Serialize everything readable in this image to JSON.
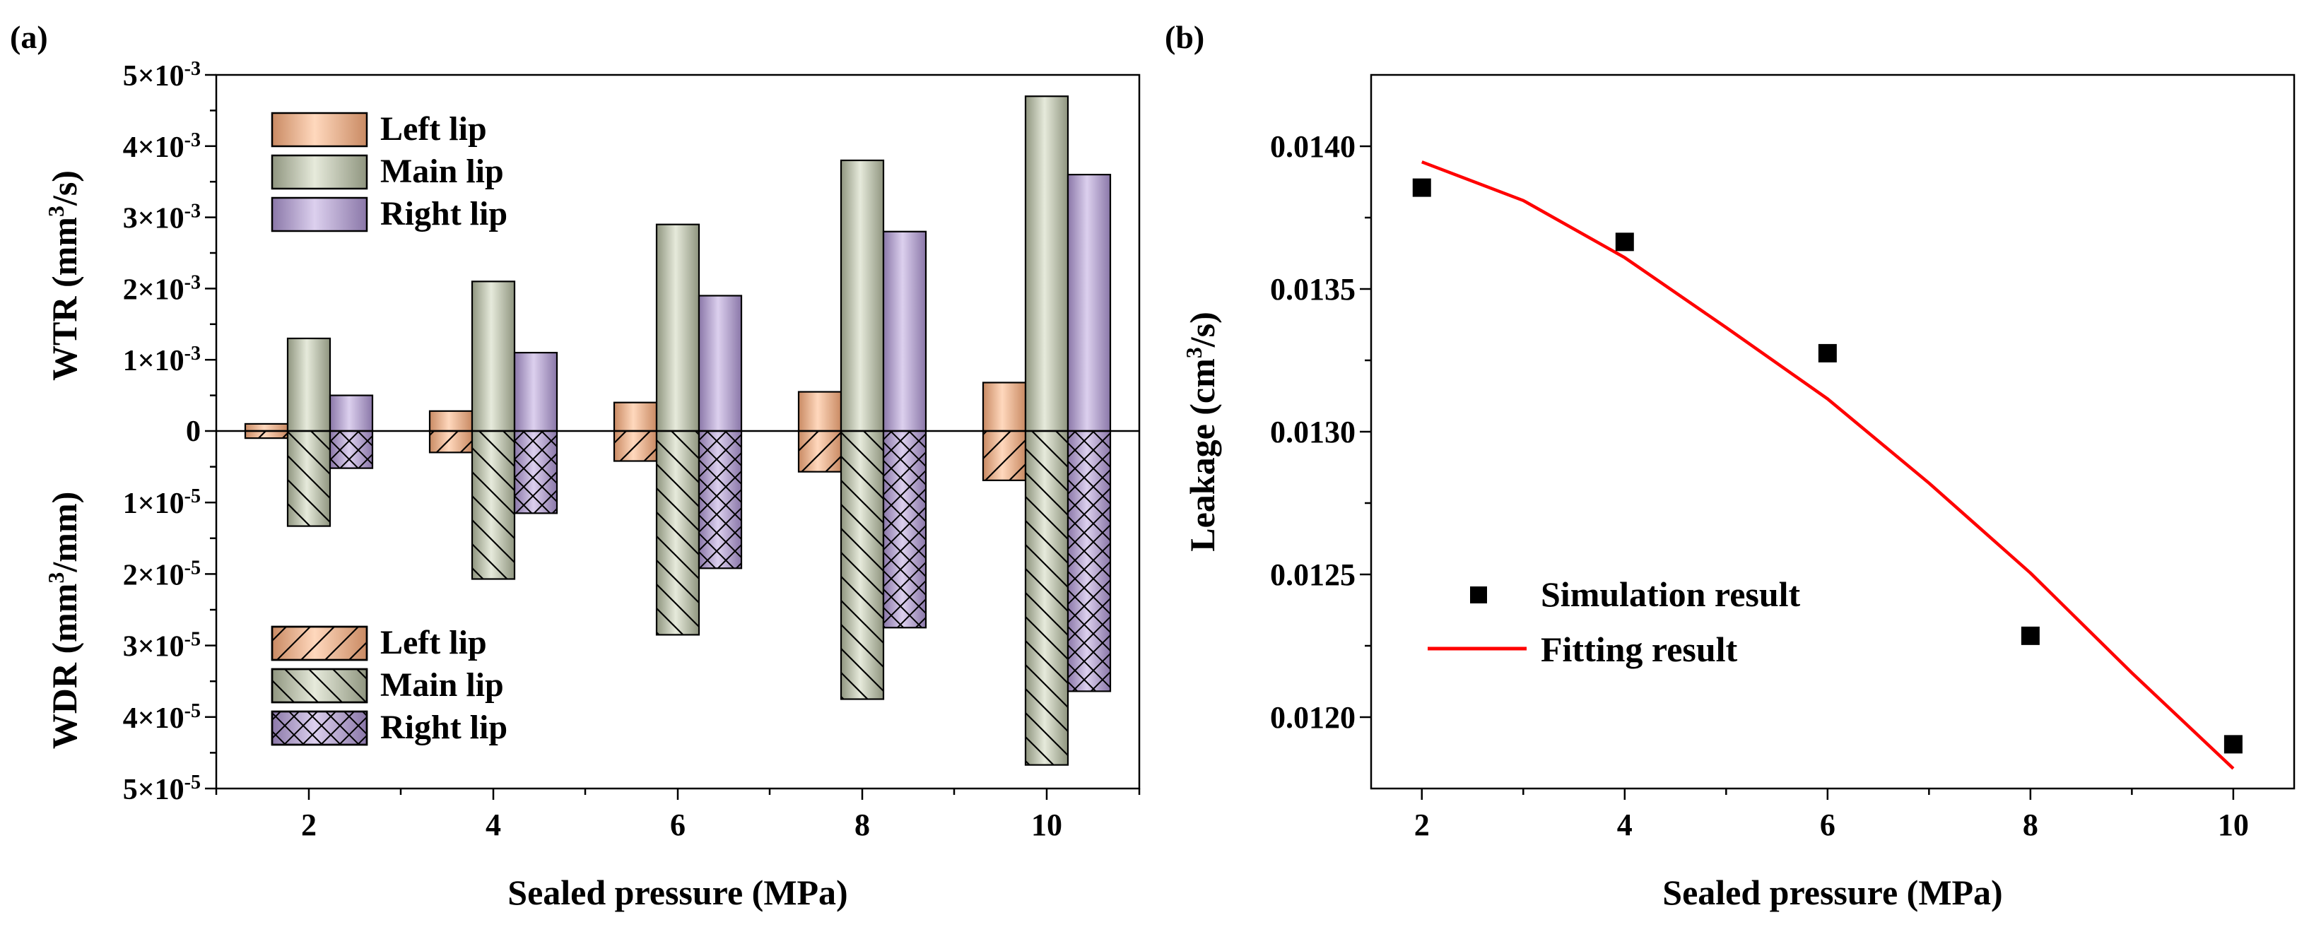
{
  "chart_data": [
    {
      "panel_label": "(a)",
      "type": "bar",
      "xlabel": "Sealed pressure (MPa)",
      "categories": [
        "2",
        "4",
        "6",
        "8",
        "10"
      ],
      "upper": {
        "ylabel": {
          "main": "WTR (mm",
          "sup": "3",
          "tail": "/s)"
        },
        "ylim": [
          0,
          0.005
        ],
        "tick_labels": [
          {
            "base": "1×10",
            "exp": "-3"
          },
          {
            "base": "2×10",
            "exp": "-3"
          },
          {
            "base": "3×10",
            "exp": "-3"
          },
          {
            "base": "4×10",
            "exp": "-3"
          },
          {
            "base": "5×10",
            "exp": "-3"
          }
        ],
        "series": [
          {
            "name": "Left lip",
            "values": [
              0.0001,
              0.00028,
              0.0004,
              0.00055,
              0.00068
            ]
          },
          {
            "name": "Main lip",
            "values": [
              0.0013,
              0.0021,
              0.0029,
              0.0038,
              0.0047
            ]
          },
          {
            "name": "Right lip",
            "values": [
              0.0005,
              0.0011,
              0.0019,
              0.0028,
              0.0036
            ]
          }
        ]
      },
      "lower": {
        "ylabel": {
          "main": "WDR (mm",
          "sup": "3",
          "tail": "/mm)"
        },
        "ylim": [
          0,
          5e-05
        ],
        "tick_labels": [
          {
            "base": "1×10",
            "exp": "-5"
          },
          {
            "base": "2×10",
            "exp": "-5"
          },
          {
            "base": "3×10",
            "exp": "-5"
          },
          {
            "base": "4×10",
            "exp": "-5"
          },
          {
            "base": "5×10",
            "exp": "-5"
          }
        ],
        "series": [
          {
            "name": "Left lip",
            "values": [
              1e-06,
              3e-06,
              4.2e-06,
              5.7e-06,
              6.9e-06
            ]
          },
          {
            "name": "Main lip",
            "values": [
              1.33e-05,
              2.07e-05,
              2.85e-05,
              3.75e-05,
              4.67e-05
            ]
          },
          {
            "name": "Right lip",
            "values": [
              5.2e-06,
              1.15e-05,
              1.92e-05,
              2.75e-05,
              3.64e-05
            ]
          }
        ]
      },
      "zero_label": "0",
      "legend_top": [
        "Left lip",
        "Main lip",
        "Right lip"
      ],
      "legend_bottom": [
        "Left lip",
        "Main lip",
        "Right lip"
      ]
    },
    {
      "panel_label": "(b)",
      "type": "scatter",
      "xlabel": "Sealed pressure (MPa)",
      "ylabel": {
        "main": "Leakage (cm",
        "sup": "3",
        "tail": "/s)"
      },
      "xlim": [
        1.5,
        10.6
      ],
      "ylim": [
        0.01175,
        0.01425
      ],
      "x_ticks": [
        2,
        4,
        6,
        8,
        10
      ],
      "y_ticks": [
        "0.0120",
        "0.0125",
        "0.0130",
        "0.0135",
        "0.0140"
      ],
      "series": [
        {
          "name": "Simulation result",
          "type": "scatter",
          "x": [
            2,
            4,
            6,
            8,
            10
          ],
          "y": [
            0.013855,
            0.013665,
            0.013275,
            0.012285,
            0.011905
          ]
        },
        {
          "name": "Fitting result",
          "type": "line",
          "color": "#ff0000",
          "x": [
            2,
            3,
            4,
            5,
            6,
            7,
            8,
            9,
            10
          ],
          "y": [
            0.013945,
            0.01381,
            0.01361,
            0.013365,
            0.013115,
            0.01282,
            0.012505,
            0.012155,
            0.01182
          ]
        }
      ]
    }
  ],
  "colors": {
    "left_lip": "#f2b48f",
    "main_lip": "#c2c7b3",
    "right_lip": "#b7a4d2",
    "fit_line": "#ff0000"
  }
}
